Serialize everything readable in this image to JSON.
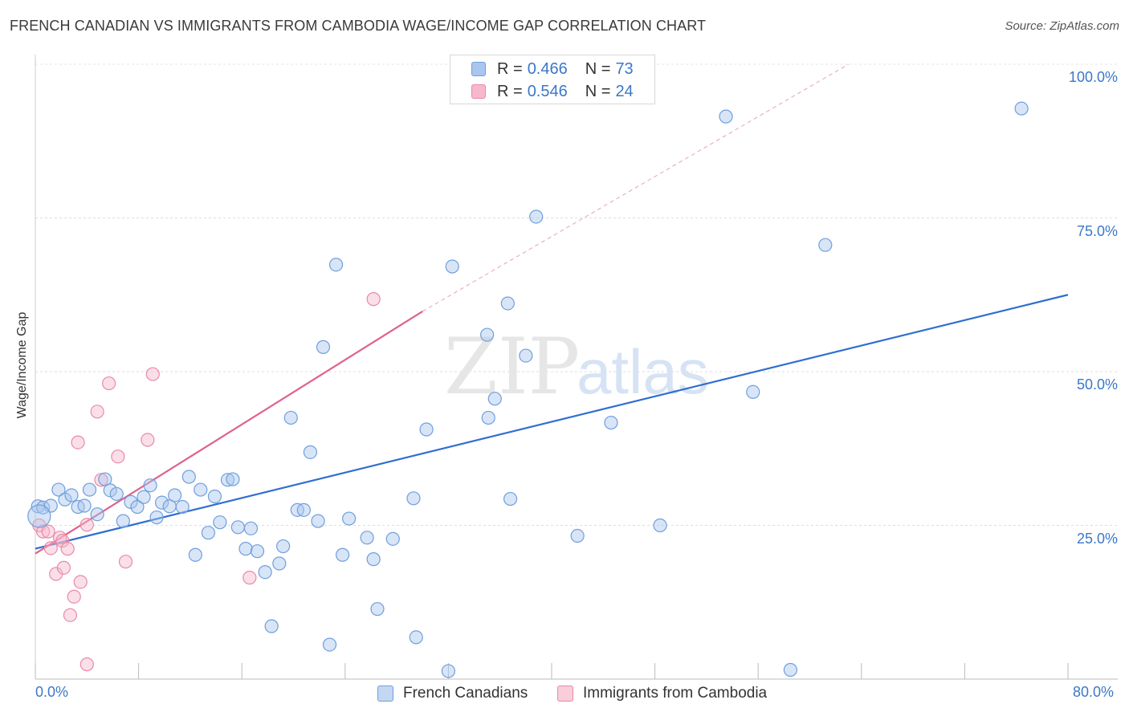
{
  "title": "FRENCH CANADIAN VS IMMIGRANTS FROM CAMBODIA WAGE/INCOME GAP CORRELATION CHART",
  "source": "Source: ZipAtlas.com",
  "legend_top": [
    {
      "r_label": "R =",
      "r": "0.466",
      "n_label": "N =",
      "n": "73",
      "color": "#a9c6ee",
      "border": "#6f9fdc"
    },
    {
      "r_label": "R =",
      "r": "0.546",
      "n_label": "N =",
      "n": "24",
      "color": "#f7b8cb",
      "border": "#e88aa8"
    }
  ],
  "legend_bottom": [
    {
      "label": "French Canadians",
      "color": "#c3d7f3",
      "border": "#6f9fdc"
    },
    {
      "label": "Immigrants from Cambodia",
      "color": "#f9cdda",
      "border": "#e88aa8"
    }
  ],
  "chart_data": {
    "type": "scatter",
    "title": "FRENCH CANADIAN VS IMMIGRANTS FROM CAMBODIA WAGE/INCOME GAP CORRELATION CHART",
    "xlabel": "",
    "ylabel": "Wage/Income Gap",
    "xlim": [
      0,
      80
    ],
    "ylim": [
      0,
      100
    ],
    "x_tick_labels": {
      "left": "0.0%",
      "right": "80.0%"
    },
    "y_ticks": [
      {
        "value": 100,
        "label": "100.0%"
      },
      {
        "value": 75,
        "label": "75.0%"
      },
      {
        "value": 50,
        "label": "50.0%"
      },
      {
        "value": 25,
        "label": "25.0%"
      }
    ],
    "watermark": {
      "a": "ZIP",
      "b": "atlas"
    },
    "series": [
      {
        "name": "French Canadians",
        "color": "#6f9fdc",
        "fill": "rgba(169,198,238,0.45)",
        "trend": {
          "x0": 0,
          "y0": 21.2,
          "x1": 80,
          "y1": 62.5,
          "color": "#2f6fd0"
        },
        "points": [
          [
            0.2,
            28.1
          ],
          [
            0.6,
            27.9
          ],
          [
            1.2,
            28.2
          ],
          [
            1.8,
            30.8
          ],
          [
            2.3,
            29.2
          ],
          [
            2.8,
            29.9
          ],
          [
            3.3,
            28.0
          ],
          [
            3.8,
            28.2
          ],
          [
            4.2,
            30.8
          ],
          [
            4.8,
            26.8
          ],
          [
            5.4,
            32.5
          ],
          [
            5.8,
            30.7
          ],
          [
            6.3,
            30.1
          ],
          [
            6.8,
            25.7
          ],
          [
            7.4,
            28.8
          ],
          [
            7.9,
            28.0
          ],
          [
            8.4,
            29.6
          ],
          [
            8.9,
            31.5
          ],
          [
            9.4,
            26.3
          ],
          [
            9.8,
            28.7
          ],
          [
            10.4,
            28.1
          ],
          [
            10.8,
            29.9
          ],
          [
            11.4,
            28.0
          ],
          [
            11.9,
            32.9
          ],
          [
            12.4,
            20.2
          ],
          [
            12.8,
            30.8
          ],
          [
            13.4,
            23.8
          ],
          [
            13.9,
            29.7
          ],
          [
            14.3,
            25.5
          ],
          [
            14.9,
            32.4
          ],
          [
            15.3,
            32.5
          ],
          [
            15.7,
            24.7
          ],
          [
            16.3,
            21.2
          ],
          [
            16.7,
            24.5
          ],
          [
            17.2,
            20.8
          ],
          [
            17.8,
            17.4
          ],
          [
            18.3,
            8.6
          ],
          [
            18.9,
            18.8
          ],
          [
            19.2,
            21.6
          ],
          [
            19.8,
            42.5
          ],
          [
            20.3,
            27.5
          ],
          [
            20.8,
            27.5
          ],
          [
            21.3,
            36.9
          ],
          [
            21.9,
            25.7
          ],
          [
            22.3,
            54.0
          ],
          [
            22.8,
            5.6
          ],
          [
            23.3,
            67.4
          ],
          [
            23.8,
            20.2
          ],
          [
            24.3,
            26.1
          ],
          [
            25.7,
            23.0
          ],
          [
            26.2,
            19.5
          ],
          [
            26.5,
            11.4
          ],
          [
            27.7,
            22.8
          ],
          [
            29.3,
            29.4
          ],
          [
            29.5,
            6.8
          ],
          [
            30.3,
            40.6
          ],
          [
            32.0,
            1.3
          ],
          [
            32.3,
            67.1
          ],
          [
            35.0,
            56.0
          ],
          [
            35.1,
            42.5
          ],
          [
            35.6,
            45.6
          ],
          [
            36.6,
            61.1
          ],
          [
            36.8,
            29.3
          ],
          [
            38.0,
            52.6
          ],
          [
            38.8,
            75.2
          ],
          [
            42.0,
            23.3
          ],
          [
            44.6,
            41.7
          ],
          [
            48.4,
            25.0
          ],
          [
            53.5,
            91.5
          ],
          [
            55.6,
            46.7
          ],
          [
            58.5,
            1.5
          ],
          [
            61.2,
            70.6
          ],
          [
            76.4,
            92.8
          ]
        ],
        "big_points": [
          [
            0.3,
            26.5
          ]
        ]
      },
      {
        "name": "Immigrants from Cambodia",
        "color": "#e88aa8",
        "fill": "rgba(247,184,203,0.45)",
        "trend": {
          "x0": 0,
          "y0": 20.4,
          "x1": 30.0,
          "y1": 59.8,
          "color": "#e0628d"
        },
        "trend_ext": {
          "x0": 30.0,
          "y0": 59.8,
          "x1": 63.0,
          "y1": 100.0
        },
        "points": [
          [
            0.3,
            25.0
          ],
          [
            0.6,
            24.0
          ],
          [
            1.0,
            24.0
          ],
          [
            1.2,
            21.3
          ],
          [
            1.6,
            17.1
          ],
          [
            1.9,
            23.0
          ],
          [
            2.1,
            22.5
          ],
          [
            2.2,
            18.1
          ],
          [
            2.5,
            21.2
          ],
          [
            2.7,
            10.4
          ],
          [
            3.0,
            13.4
          ],
          [
            3.3,
            38.5
          ],
          [
            3.5,
            15.8
          ],
          [
            4.0,
            25.1
          ],
          [
            4.0,
            2.4
          ],
          [
            4.8,
            43.5
          ],
          [
            5.1,
            32.4
          ],
          [
            5.7,
            48.1
          ],
          [
            6.4,
            36.2
          ],
          [
            7.0,
            19.1
          ],
          [
            8.7,
            38.9
          ],
          [
            9.1,
            49.6
          ],
          [
            16.6,
            16.5
          ],
          [
            26.2,
            61.8
          ]
        ]
      }
    ]
  }
}
